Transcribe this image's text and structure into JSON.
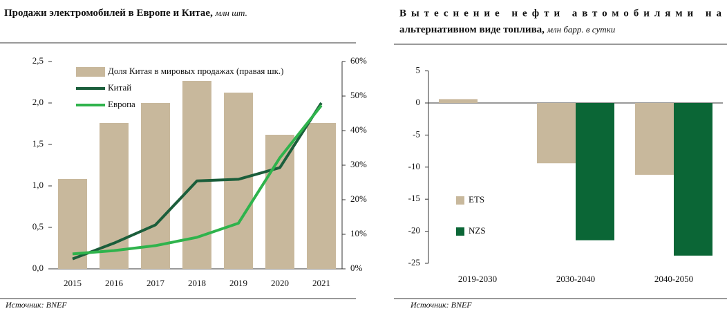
{
  "chart_data": [
    {
      "type": "bar_line",
      "title": "Продажи электромобилей в Европе и Китае,",
      "subtitle": "млн шт.",
      "categories": [
        "2015",
        "2016",
        "2017",
        "2018",
        "2019",
        "2020",
        "2021"
      ],
      "series": [
        {
          "name": "Доля Китая в мировых продажах (правая шк.)",
          "color": "#c8b89c",
          "kind": "bar",
          "axis": "y2",
          "values": [
            26,
            42.2,
            48,
            54.4,
            51,
            38.8,
            42.2
          ]
        },
        {
          "name": "Китай",
          "color": "#1b5e3b",
          "kind": "line",
          "values": [
            0.12,
            0.31,
            0.53,
            1.06,
            1.08,
            1.22,
            2.0
          ]
        },
        {
          "name": "Европа",
          "color": "#2fb34c",
          "kind": "line",
          "values": [
            0.18,
            0.22,
            0.28,
            0.38,
            0.55,
            1.34,
            1.97
          ]
        }
      ],
      "ylim": [
        0,
        2.5
      ],
      "yticks": [
        {
          "value": 0,
          "label": "0,0"
        },
        {
          "value": 0.5,
          "label": "0,5"
        },
        {
          "value": 1,
          "label": "1,0"
        },
        {
          "value": 1.5,
          "label": "1,5"
        },
        {
          "value": 2,
          "label": "2,0"
        },
        {
          "value": 2.5,
          "label": "2,5"
        }
      ],
      "y2lim": [
        0,
        60
      ],
      "y2ticks": [
        {
          "value": 0,
          "label": "0%"
        },
        {
          "value": 10,
          "label": "10%"
        },
        {
          "value": 20,
          "label": "20%"
        },
        {
          "value": 30,
          "label": "30%"
        },
        {
          "value": 40,
          "label": "40%"
        },
        {
          "value": 50,
          "label": "50%"
        },
        {
          "value": 60,
          "label": "60%"
        }
      ],
      "source": "Источник: BNEF"
    },
    {
      "type": "bar",
      "title": "Вытеснение нефти автомобилями на альтернативном виде топлива,",
      "subtitle": "млн барр. в сутки",
      "categories": [
        "2019-2030",
        "2030-2040",
        "2040-2050"
      ],
      "series": [
        {
          "name": "ETS",
          "color": "#c8b89c",
          "values": [
            0.6,
            -9.4,
            -11.2
          ]
        },
        {
          "name": "NZS",
          "color": "#0b6636",
          "values": [
            null,
            -21.4,
            -23.8
          ]
        }
      ],
      "ylim": [
        -25,
        5
      ],
      "yticks": [
        5,
        0,
        -5,
        -10,
        -15,
        -20,
        -25
      ],
      "source": "Источник: BNEF"
    }
  ]
}
